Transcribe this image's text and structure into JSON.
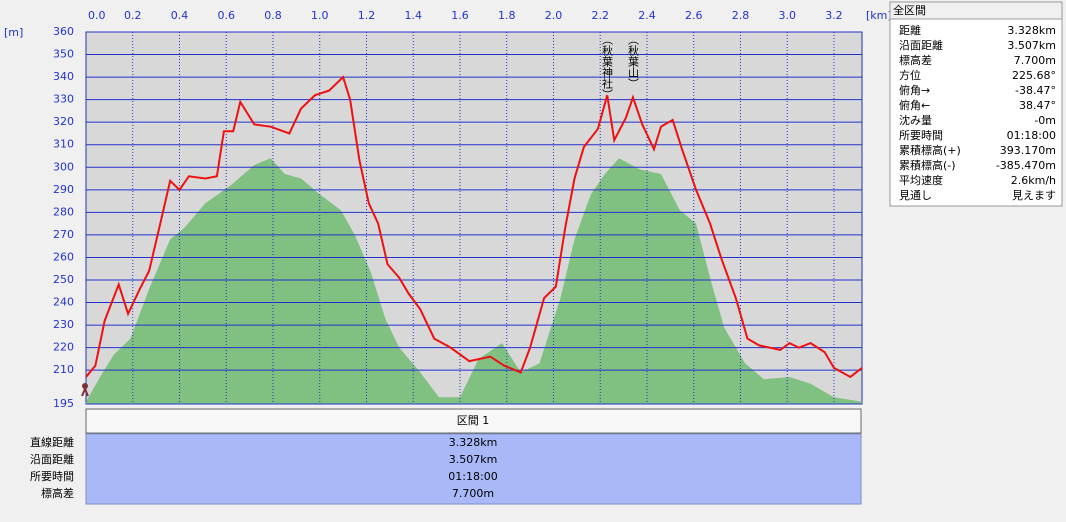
{
  "chart_data": {
    "type": "line",
    "x_unit": "[km]",
    "y_unit": "[m]",
    "annotations": [
      "（秋葉神社）",
      "（秋葉山）"
    ],
    "xlim": [
      0,
      3.32
    ],
    "ylim": [
      195,
      360
    ],
    "xticks": [
      {
        "value": 0,
        "label": "0.0"
      },
      0.2,
      0.4,
      0.6,
      0.8,
      {
        "value": 1,
        "label": "1.0"
      },
      1.2,
      1.4,
      1.6,
      1.8,
      {
        "value": 2,
        "label": "2.0"
      },
      2.2,
      2.4,
      2.6,
      2.8,
      {
        "value": 3,
        "label": "3.0"
      },
      3.2
    ],
    "yticks": [
      195,
      210,
      220,
      230,
      240,
      250,
      260,
      270,
      280,
      290,
      300,
      310,
      320,
      330,
      340,
      350,
      360
    ],
    "grid": true,
    "series": [
      {
        "kind": "area",
        "color": "#80c080",
        "x": [
          0,
          0.06,
          0.12,
          0.19,
          0.27,
          0.36,
          0.42,
          0.51,
          0.62,
          0.72,
          0.79,
          0.85,
          0.92,
          1.0,
          1.09,
          1.15,
          1.22,
          1.28,
          1.34,
          1.43,
          1.51,
          1.6,
          1.68,
          1.78,
          1.86,
          1.94,
          2.03,
          2.09,
          2.16,
          2.22,
          2.28,
          2.37,
          2.46,
          2.54,
          2.61,
          2.67,
          2.73,
          2.82,
          2.9,
          3.01,
          3.1,
          3.2,
          3.32
        ],
        "values": [
          196,
          207,
          217,
          224,
          246,
          268,
          273,
          284,
          292,
          301,
          304,
          297,
          295,
          288,
          281,
          270,
          253,
          233,
          220,
          209,
          198,
          198,
          215,
          222,
          209,
          213,
          242,
          268,
          288,
          297,
          304,
          299,
          297,
          281,
          275,
          251,
          229,
          213,
          206,
          207,
          204,
          198,
          196
        ]
      },
      {
        "kind": "line",
        "color": "#ee1111",
        "x": [
          0,
          0.04,
          0.08,
          0.14,
          0.18,
          0.23,
          0.27,
          0.32,
          0.36,
          0.4,
          0.44,
          0.51,
          0.56,
          0.59,
          0.63,
          0.66,
          0.72,
          0.79,
          0.87,
          0.92,
          0.98,
          1.04,
          1.1,
          1.13,
          1.17,
          1.21,
          1.25,
          1.29,
          1.34,
          1.38,
          1.43,
          1.49,
          1.56,
          1.64,
          1.73,
          1.79,
          1.86,
          1.9,
          1.96,
          2.01,
          2.05,
          2.09,
          2.13,
          2.19,
          2.23,
          2.26,
          2.31,
          2.34,
          2.38,
          2.43,
          2.46,
          2.51,
          2.55,
          2.61,
          2.67,
          2.72,
          2.78,
          2.83,
          2.88,
          2.97,
          3.01,
          3.05,
          3.1,
          3.16,
          3.2,
          3.27,
          3.32
        ],
        "values": [
          207,
          212,
          232,
          248,
          235,
          246,
          254,
          276,
          294,
          290,
          296,
          295,
          296,
          316,
          316,
          329,
          319,
          318,
          315,
          326,
          332,
          334,
          340,
          330,
          303,
          284,
          275,
          257,
          251,
          244,
          237,
          224,
          220,
          214,
          216,
          212,
          209,
          220,
          242,
          247,
          273,
          295,
          309,
          317,
          332,
          312,
          322,
          331,
          319,
          308,
          318,
          321,
          308,
          290,
          275,
          259,
          242,
          224,
          221,
          219,
          222,
          220,
          222,
          218,
          211,
          207,
          211
        ]
      }
    ]
  },
  "side_panel": {
    "title": "全区間",
    "rows": [
      [
        "距離",
        "3.328km"
      ],
      [
        "沿面距離",
        "3.507km"
      ],
      [
        "標高差",
        "7.700m"
      ],
      [
        "方位",
        "225.68°"
      ],
      [
        "俯角→",
        "-38.47°"
      ],
      [
        "俯角←",
        "38.47°"
      ],
      [
        "沈み量",
        "-0m"
      ],
      [
        "所要時間",
        "01:18:00"
      ],
      [
        "累積標高(+)",
        "393.170m"
      ],
      [
        "累積標高(-)",
        "-385.470m"
      ],
      [
        "平均速度",
        "2.6km/h"
      ],
      [
        "見通し",
        "見えます"
      ]
    ]
  },
  "section_table": {
    "header": "区間 1",
    "rows": [
      [
        "直線距離",
        "3.328km"
      ],
      [
        "沿面距離",
        "3.507km"
      ],
      [
        "所要時間",
        "01:18:00"
      ],
      [
        "標高差",
        "7.700m"
      ]
    ]
  }
}
